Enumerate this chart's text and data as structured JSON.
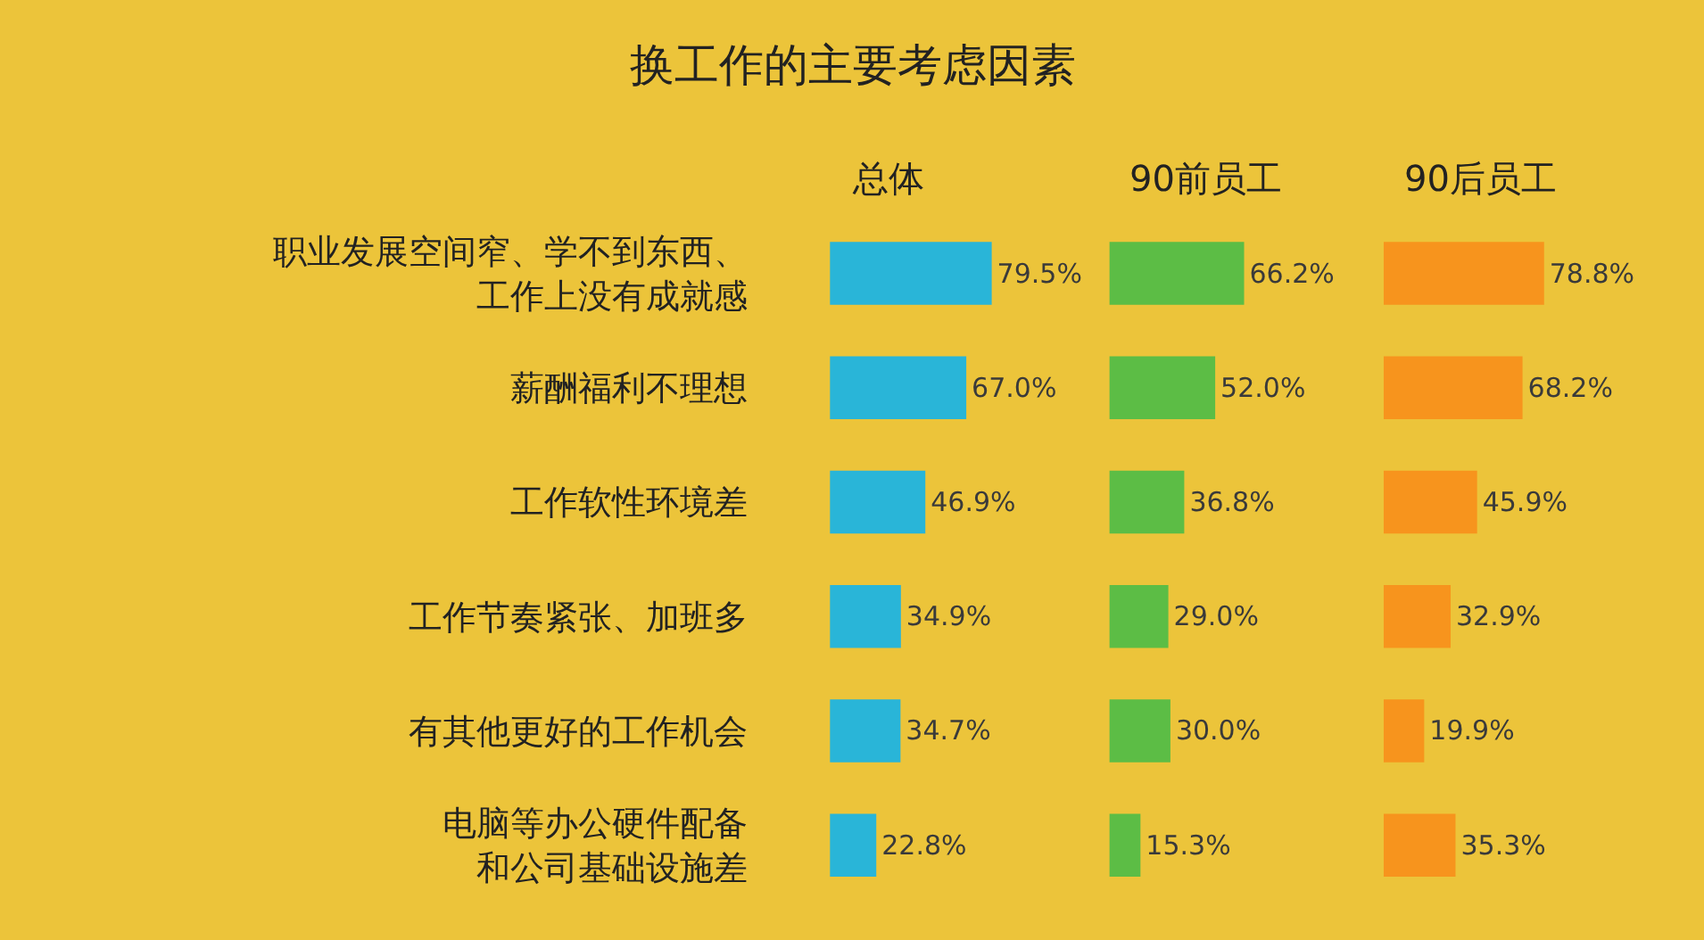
{
  "chart_data": [
    {
      "type": "bar",
      "orientation": "horizontal",
      "title": "换工作的主要考虑因素",
      "subtitle": "总体",
      "tick_labels": "y",
      "color": "#29b5d8",
      "categories": [
        "职业发展空间窄、学不到东西、工作上没有成就感",
        "薪酬福利不理想",
        "工作软性环境差",
        "工作节奏紧张、加班多",
        "有其他更好的工作机会",
        "电脑等办公硬件配备和公司基础设施差"
      ],
      "values": [
        79.5,
        67.0,
        46.9,
        34.9,
        34.7,
        22.8
      ],
      "value_labels": [
        "79.5%",
        "67.0%",
        "46.9%",
        "34.9%",
        "34.7%",
        "22.8%"
      ]
    },
    {
      "type": "bar",
      "orientation": "horizontal",
      "subtitle": "90前员工",
      "tick_labels": false,
      "color": "#5cbd45",
      "categories": [
        "职业发展空间窄、学不到东西、工作上没有成就感",
        "薪酬福利不理想",
        "工作软性环境差",
        "工作节奏紧张、加班多",
        "有其他更好的工作机会",
        "电脑等办公硬件配备和公司基础设施差"
      ],
      "values": [
        66.2,
        52.0,
        36.8,
        29.0,
        30.0,
        15.3
      ],
      "value_labels": [
        "66.2%",
        "52.0%",
        "36.8%",
        "29.0%",
        "30.0%",
        "15.3%"
      ]
    },
    {
      "type": "bar",
      "orientation": "horizontal",
      "subtitle": "90后员工",
      "tick_labels": false,
      "color": "#f7941d",
      "categories": [
        "职业发展空间窄、学不到东西、工作上没有成就感",
        "薪酬福利不理想",
        "工作软性环境差",
        "工作节奏紧张、加班多",
        "有其他更好的工作机会",
        "电脑等办公硬件配备和公司基础设施差"
      ],
      "values": [
        78.8,
        68.2,
        45.9,
        32.9,
        19.9,
        35.3
      ],
      "value_labels": [
        "78.8%",
        "68.2%",
        "45.9%",
        "32.9%",
        "19.9%",
        "35.3%"
      ]
    }
  ]
}
